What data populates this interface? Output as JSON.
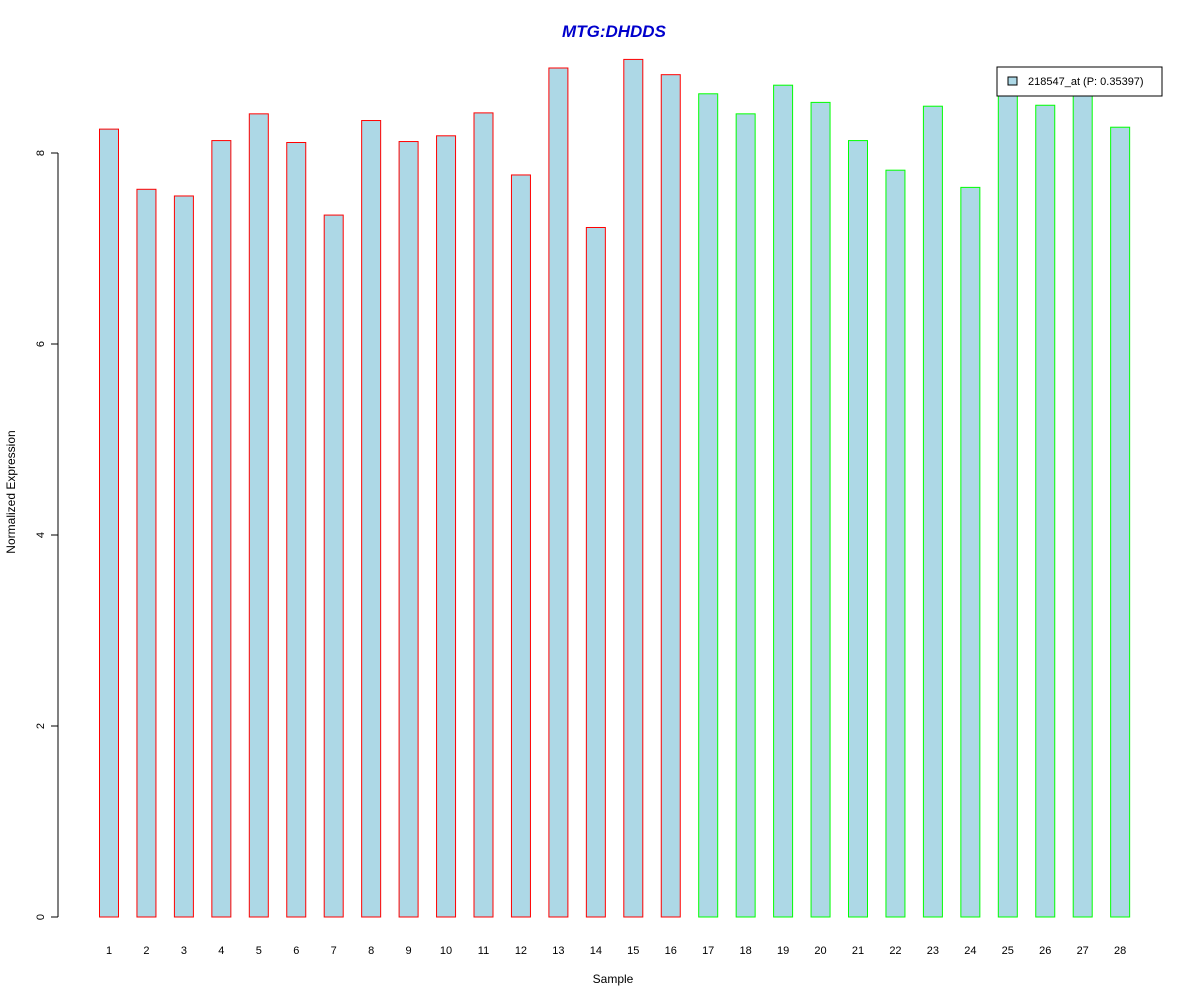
{
  "chart_data": {
    "type": "bar",
    "title": "MTG:DHDDS",
    "xlabel": "Sample",
    "ylabel": "Normalized Expression",
    "categories": [
      "1",
      "2",
      "3",
      "4",
      "5",
      "6",
      "7",
      "8",
      "9",
      "10",
      "11",
      "12",
      "13",
      "14",
      "15",
      "16",
      "17",
      "18",
      "19",
      "20",
      "21",
      "22",
      "23",
      "24",
      "25",
      "26",
      "27",
      "28"
    ],
    "series": [
      {
        "name": "218547_at (P: 0.35397)",
        "values": [
          8.25,
          7.62,
          7.55,
          8.13,
          8.41,
          8.11,
          7.35,
          8.34,
          8.12,
          8.18,
          8.42,
          7.77,
          8.89,
          7.22,
          8.98,
          8.82,
          8.62,
          8.41,
          8.71,
          8.53,
          8.13,
          7.82,
          8.49,
          7.64,
          8.63,
          8.5,
          8.63,
          8.27
        ]
      }
    ],
    "groups": [
      {
        "samples": [
          1,
          16
        ],
        "border_color": "#ff0000"
      },
      {
        "samples": [
          17,
          28
        ],
        "border_color": "#00ff00"
      }
    ],
    "bar_fill": "#add8e6",
    "title_color": "#0000cc",
    "yticks": [
      0,
      2,
      4,
      6,
      8
    ],
    "ylim": [
      0,
      9.1
    ],
    "legend_position": "top-right",
    "grid": false
  }
}
